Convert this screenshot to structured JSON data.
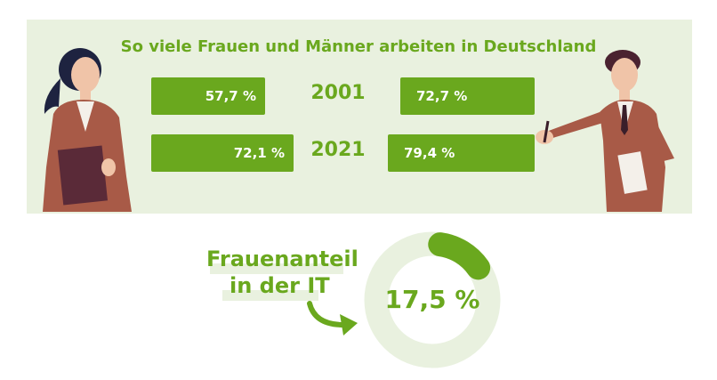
{
  "title": "So viele Frauen und Männer arbeiten in Deutschland",
  "chart_data": {
    "type": "bar",
    "title": "So viele Frauen und Männer arbeiten in Deutschland",
    "categories": [
      "2001",
      "2021"
    ],
    "series": [
      {
        "name": "Frauen",
        "values": [
          57.7,
          72.1
        ],
        "labels": [
          "57,7 %",
          "72,1 %"
        ]
      },
      {
        "name": "Männer",
        "values": [
          72.7,
          79.4
        ],
        "labels": [
          "72,7 %",
          "79,4 %"
        ]
      }
    ],
    "donut": {
      "label_line1": "Frauenanteil",
      "label_line2": "in der IT",
      "value": 17.5,
      "value_label": "17,5 %"
    }
  },
  "colors": {
    "accent": "#6aa81e",
    "panel": "#e9f1df"
  }
}
